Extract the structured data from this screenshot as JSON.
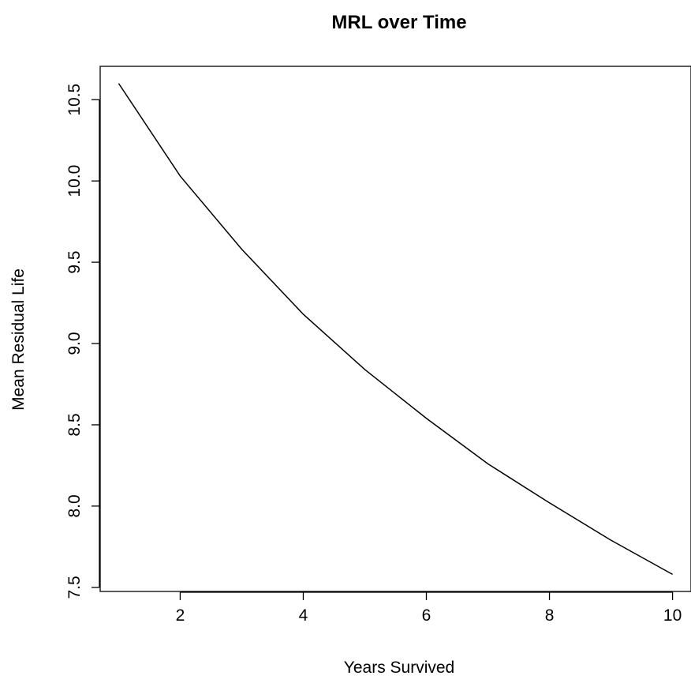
{
  "chart_data": {
    "type": "line",
    "title": "MRL over Time",
    "xlabel": "Years Survived",
    "ylabel": "Mean Residual Life",
    "x": [
      1,
      2,
      3,
      4,
      5,
      6,
      7,
      8,
      9,
      10
    ],
    "series": [
      {
        "values": [
          10.6,
          10.03,
          9.58,
          9.18,
          8.84,
          8.54,
          8.26,
          8.02,
          7.79,
          7.58
        ]
      }
    ],
    "xlim": [
      0.7,
      10.3
    ],
    "ylim": [
      7.475,
      10.705
    ],
    "xticks": [
      2,
      4,
      6,
      8,
      10
    ],
    "yticks": [
      7.5,
      8.0,
      8.5,
      9.0,
      9.5,
      10.0,
      10.5
    ],
    "xtick_labels": [
      "2",
      "4",
      "6",
      "8",
      "10"
    ],
    "ytick_labels": [
      "7.5",
      "8.0",
      "8.5",
      "9.0",
      "9.5",
      "10.0",
      "10.5"
    ],
    "grid": false,
    "line_color": "#000000"
  }
}
